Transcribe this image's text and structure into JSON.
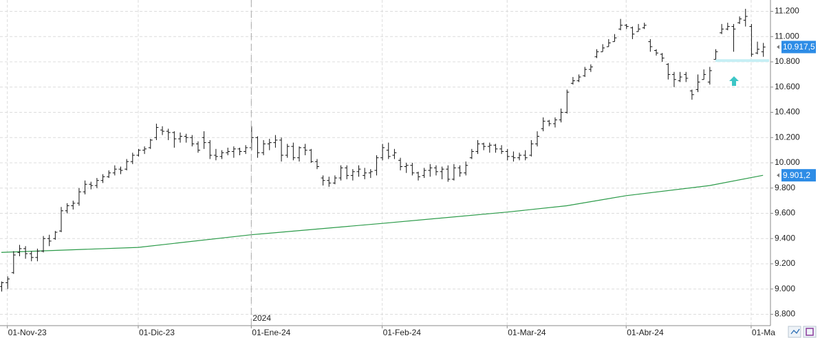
{
  "chart_data": {
    "type": "ohlc",
    "color": "#111111",
    "categories": [
      "2023-10-31",
      "2023-11-01",
      "2023-11-02",
      "2023-11-03",
      "2023-11-06",
      "2023-11-07",
      "2023-11-08",
      "2023-11-09",
      "2023-11-10",
      "2023-11-13",
      "2023-11-14",
      "2023-11-15",
      "2023-11-16",
      "2023-11-17",
      "2023-11-20",
      "2023-11-21",
      "2023-11-22",
      "2023-11-23",
      "2023-11-24",
      "2023-11-27",
      "2023-11-28",
      "2023-11-29",
      "2023-11-30",
      "2023-12-01",
      "2023-12-04",
      "2023-12-05",
      "2023-12-06",
      "2023-12-07",
      "2023-12-08",
      "2023-12-11",
      "2023-12-12",
      "2023-12-13",
      "2023-12-14",
      "2023-12-15",
      "2023-12-18",
      "2023-12-19",
      "2023-12-20",
      "2023-12-21",
      "2023-12-22",
      "2023-12-27",
      "2023-12-28",
      "2023-12-29",
      "2024-01-02",
      "2024-01-03",
      "2024-01-04",
      "2024-01-05",
      "2024-01-08",
      "2024-01-09",
      "2024-01-10",
      "2024-01-11",
      "2024-01-12",
      "2024-01-15",
      "2024-01-16",
      "2024-01-17",
      "2024-01-18",
      "2024-01-19",
      "2024-01-22",
      "2024-01-23",
      "2024-01-24",
      "2024-01-25",
      "2024-01-26",
      "2024-01-29",
      "2024-01-30",
      "2024-01-31",
      "2024-02-01",
      "2024-02-02",
      "2024-02-05",
      "2024-02-06",
      "2024-02-07",
      "2024-02-08",
      "2024-02-09",
      "2024-02-12",
      "2024-02-13",
      "2024-02-14",
      "2024-02-15",
      "2024-02-16",
      "2024-02-19",
      "2024-02-20",
      "2024-02-21",
      "2024-02-22",
      "2024-02-23",
      "2024-02-26",
      "2024-02-27",
      "2024-02-28",
      "2024-02-29",
      "2024-03-01",
      "2024-03-04",
      "2024-03-05",
      "2024-03-06",
      "2024-03-07",
      "2024-03-08",
      "2024-03-11",
      "2024-03-12",
      "2024-03-13",
      "2024-03-14",
      "2024-03-15",
      "2024-03-18",
      "2024-03-19",
      "2024-03-20",
      "2024-03-21",
      "2024-03-22",
      "2024-03-25",
      "2024-03-26",
      "2024-03-27",
      "2024-03-28",
      "2024-04-02",
      "2024-04-03",
      "2024-04-04",
      "2024-04-05",
      "2024-04-08",
      "2024-04-09",
      "2024-04-10",
      "2024-04-11",
      "2024-04-12",
      "2024-04-15",
      "2024-04-16",
      "2024-04-17",
      "2024-04-18",
      "2024-04-19",
      "2024-04-22",
      "2024-04-23",
      "2024-04-24",
      "2024-04-25",
      "2024-04-26",
      "2024-04-29",
      "2024-04-30",
      "2024-05-02",
      "2024-05-03",
      "2024-05-06"
    ],
    "ohlc": [
      [
        9020,
        9060,
        8980,
        9050
      ],
      [
        9050,
        9100,
        9000,
        9080
      ],
      [
        9130,
        9300,
        9120,
        9270
      ],
      [
        9290,
        9350,
        9260,
        9320
      ],
      [
        9320,
        9340,
        9240,
        9280
      ],
      [
        9280,
        9300,
        9220,
        9250
      ],
      [
        9250,
        9320,
        9220,
        9300
      ],
      [
        9300,
        9420,
        9290,
        9400
      ],
      [
        9400,
        9430,
        9340,
        9380
      ],
      [
        9400,
        9460,
        9390,
        9450
      ],
      [
        9460,
        9650,
        9450,
        9620
      ],
      [
        9620,
        9680,
        9600,
        9660
      ],
      [
        9660,
        9700,
        9630,
        9680
      ],
      [
        9680,
        9800,
        9660,
        9770
      ],
      [
        9770,
        9860,
        9750,
        9830
      ],
      [
        9830,
        9850,
        9790,
        9820
      ],
      [
        9820,
        9880,
        9800,
        9860
      ],
      [
        9860,
        9910,
        9840,
        9890
      ],
      [
        9890,
        9940,
        9880,
        9920
      ],
      [
        9920,
        9980,
        9900,
        9950
      ],
      [
        9950,
        9970,
        9910,
        9940
      ],
      [
        9950,
        10030,
        9940,
        10010
      ],
      [
        10010,
        10080,
        9990,
        10060
      ],
      [
        10060,
        10110,
        10050,
        10100
      ],
      [
        10100,
        10130,
        10070,
        10110
      ],
      [
        10120,
        10190,
        10110,
        10180
      ],
      [
        10200,
        10310,
        10180,
        10280
      ],
      [
        10260,
        10290,
        10220,
        10250
      ],
      [
        10250,
        10270,
        10180,
        10240
      ],
      [
        10240,
        10250,
        10120,
        10190
      ],
      [
        10190,
        10240,
        10160,
        10210
      ],
      [
        10210,
        10230,
        10160,
        10200
      ],
      [
        10200,
        10220,
        10130,
        10150
      ],
      [
        10150,
        10170,
        10080,
        10100
      ],
      [
        10200,
        10250,
        10110,
        10160
      ],
      [
        10160,
        10180,
        10030,
        10060
      ],
      [
        10060,
        10110,
        10020,
        10050
      ],
      [
        10050,
        10100,
        10030,
        10080
      ],
      [
        10080,
        10120,
        10060,
        10090
      ],
      [
        10090,
        10130,
        10040,
        10110
      ],
      [
        10110,
        10120,
        10060,
        10090
      ],
      [
        10090,
        10140,
        10070,
        10120
      ],
      [
        10120,
        10290,
        10100,
        10200
      ],
      [
        10200,
        10210,
        10040,
        10080
      ],
      [
        10080,
        10180,
        10060,
        10150
      ],
      [
        10150,
        10190,
        10100,
        10160
      ],
      [
        10160,
        10220,
        10120,
        10180
      ],
      [
        10180,
        10200,
        10010,
        10060
      ],
      [
        10060,
        10150,
        10040,
        10130
      ],
      [
        10130,
        10160,
        10020,
        10040
      ],
      [
        10040,
        10130,
        10010,
        10120
      ],
      [
        10120,
        10150,
        10060,
        10100
      ],
      [
        10100,
        10110,
        10000,
        10010
      ],
      [
        10010,
        10030,
        9950,
        9970
      ],
      [
        9880,
        9900,
        9820,
        9860
      ],
      [
        9860,
        9890,
        9810,
        9840
      ],
      [
        9840,
        9900,
        9830,
        9880
      ],
      [
        9880,
        9980,
        9860,
        9960
      ],
      [
        9960,
        9980,
        9870,
        9900
      ],
      [
        9900,
        9950,
        9860,
        9930
      ],
      [
        9930,
        9980,
        9890,
        9950
      ],
      [
        9900,
        9960,
        9870,
        9920
      ],
      [
        9920,
        9950,
        9880,
        9930
      ],
      [
        9940,
        10060,
        9900,
        10040
      ],
      [
        10040,
        10150,
        10020,
        10120
      ],
      [
        10100,
        10160,
        10030,
        10050
      ],
      [
        10060,
        10110,
        10030,
        10080
      ],
      [
        10020,
        10040,
        9940,
        9970
      ],
      [
        9970,
        10000,
        9920,
        9980
      ],
      [
        9980,
        10000,
        9900,
        9920
      ],
      [
        9920,
        9930,
        9860,
        9890
      ],
      [
        9900,
        9960,
        9880,
        9940
      ],
      [
        9940,
        9990,
        9890,
        9960
      ],
      [
        9960,
        9980,
        9900,
        9930
      ],
      [
        9930,
        9970,
        9870,
        9950
      ],
      [
        9950,
        9980,
        9850,
        9870
      ],
      [
        9870,
        9990,
        9860,
        9960
      ],
      [
        9960,
        9980,
        9890,
        9920
      ],
      [
        9920,
        10010,
        9900,
        9980
      ],
      [
        10040,
        10110,
        10030,
        10090
      ],
      [
        10090,
        10180,
        10070,
        10150
      ],
      [
        10150,
        10160,
        10100,
        10130
      ],
      [
        10130,
        10160,
        10080,
        10140
      ],
      [
        10140,
        10150,
        10080,
        10110
      ],
      [
        10110,
        10140,
        10070,
        10090
      ],
      [
        10090,
        10110,
        10020,
        10050
      ],
      [
        10050,
        10090,
        10010,
        10040
      ],
      [
        10040,
        10080,
        10020,
        10060
      ],
      [
        10060,
        10100,
        10020,
        10040
      ],
      [
        10060,
        10180,
        10050,
        10150
      ],
      [
        10150,
        10250,
        10130,
        10210
      ],
      [
        10270,
        10360,
        10250,
        10330
      ],
      [
        10330,
        10340,
        10290,
        10310
      ],
      [
        10310,
        10360,
        10280,
        10340
      ],
      [
        10340,
        10430,
        10320,
        10400
      ],
      [
        10400,
        10580,
        10390,
        10560
      ],
      [
        10630,
        10680,
        10620,
        10650
      ],
      [
        10650,
        10700,
        10640,
        10680
      ],
      [
        10690,
        10760,
        10680,
        10740
      ],
      [
        10740,
        10780,
        10720,
        10760
      ],
      [
        10840,
        10900,
        10830,
        10880
      ],
      [
        10880,
        10940,
        10880,
        10910
      ],
      [
        10920,
        10980,
        10920,
        10950
      ],
      [
        10960,
        11020,
        10960,
        10990
      ],
      [
        11060,
        11140,
        11050,
        11090
      ],
      [
        11090,
        11100,
        11060,
        11080
      ],
      [
        11070,
        11080,
        10980,
        11020
      ],
      [
        11040,
        11100,
        11040,
        11060
      ],
      [
        11070,
        11110,
        11060,
        11090
      ],
      [
        10960,
        10980,
        10880,
        10920
      ],
      [
        10890,
        10900,
        10850,
        10870
      ],
      [
        10860,
        10870,
        10800,
        10830
      ],
      [
        10780,
        10790,
        10660,
        10700
      ],
      [
        10700,
        10720,
        10600,
        10660
      ],
      [
        10650,
        10720,
        10640,
        10680
      ],
      [
        10700,
        10720,
        10640,
        10670
      ],
      [
        10570,
        10580,
        10500,
        10540
      ],
      [
        10580,
        10700,
        10560,
        10640
      ],
      [
        10660,
        10740,
        10660,
        10700
      ],
      [
        10640,
        10760,
        10620,
        10730
      ],
      [
        10820,
        10900,
        10820,
        10880
      ],
      [
        11030,
        11100,
        11020,
        11060
      ],
      [
        11060,
        11110,
        11050,
        11080
      ],
      [
        11080,
        11100,
        10880,
        11060
      ],
      [
        11110,
        11160,
        11100,
        11140
      ],
      [
        11130,
        11220,
        11080,
        11160
      ],
      [
        11080,
        11100,
        10840,
        10860
      ],
      [
        10870,
        10960,
        10860,
        10900
      ],
      [
        10880,
        10950,
        10840,
        10917.5
      ]
    ],
    "ma": {
      "color": "#2a9a48",
      "x": [
        "2023-10-31",
        "2023-12-01",
        "2024-01-02",
        "2024-02-01",
        "2024-03-01",
        "2024-03-15",
        "2024-04-02",
        "2024-04-22",
        "2024-05-06"
      ],
      "values": [
        9290,
        9330,
        9430,
        9520,
        9610,
        9660,
        9740,
        9820,
        9901.2
      ]
    },
    "ylim": [
      8710,
      11290
    ],
    "yticks": [
      {
        "value": 8800,
        "label": "8.800"
      },
      {
        "value": 9000,
        "label": "9.000"
      },
      {
        "value": 9200,
        "label": "9.200"
      },
      {
        "value": 9400,
        "label": "9.400"
      },
      {
        "value": 9600,
        "label": "9.600"
      },
      {
        "value": 9800,
        "label": "9.800"
      },
      {
        "value": 10000,
        "label": "10.000"
      },
      {
        "value": 10200,
        "label": "10.200"
      },
      {
        "value": 10400,
        "label": "10.400"
      },
      {
        "value": 10600,
        "label": "10.600"
      },
      {
        "value": 10800,
        "label": "10.800"
      },
      {
        "value": 11000,
        "label": "11.000"
      },
      {
        "value": 11200,
        "label": "11.200"
      }
    ],
    "xticks": [
      {
        "value": "2023-11-01",
        "label": "01-Nov-23"
      },
      {
        "value": "2023-12-01",
        "label": "01-Dic-23"
      },
      {
        "value": "2024-01-01",
        "label": "01-Ene-24"
      },
      {
        "value": "2024-02-01",
        "label": "01-Feb-24"
      },
      {
        "value": "2024-03-01",
        "label": "01-Mar-24"
      },
      {
        "value": "2024-04-01",
        "label": "01-Abr-24"
      },
      {
        "value": "2024-05-01",
        "label": "01-Ma"
      }
    ],
    "year_marker": {
      "value": "2024-01-01",
      "label": "2024"
    },
    "grid": true,
    "hline": {
      "value": 10810,
      "start": "2024-04-23",
      "color": "#c6eff5"
    },
    "price_labels": [
      {
        "value": 10917.5,
        "label": "10.917,5",
        "color": "#2d8ce6"
      },
      {
        "value": 9901.2,
        "label": "9.901,2",
        "color": "#2d8ce6"
      }
    ]
  }
}
